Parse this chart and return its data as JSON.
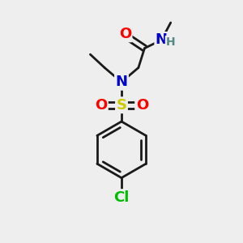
{
  "bg_color": "#eeeeee",
  "bond_color": "#1a1a1a",
  "bond_width": 2.0,
  "atom_colors": {
    "O": "#ff0000",
    "N": "#0000cc",
    "S": "#cccc00",
    "Cl": "#00bb00",
    "H": "#558888",
    "C": "#1a1a1a"
  },
  "font_size_atom": 13,
  "font_size_small": 10
}
